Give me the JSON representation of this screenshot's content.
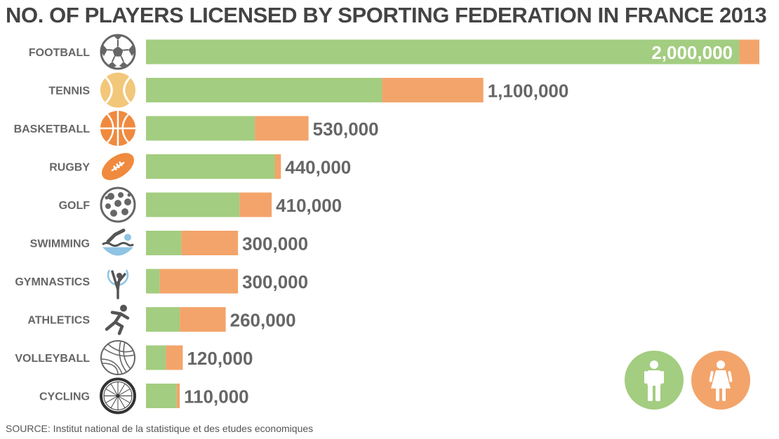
{
  "chart_data": {
    "type": "bar",
    "orientation": "horizontal",
    "stacked": true,
    "title": "NO. OF PLAYERS LICENSED BY SPORTING FEDERATION IN FRANCE 2013",
    "categories": [
      "FOOTBALL",
      "TENNIS",
      "BASKETBALL",
      "RUGBY",
      "GOLF",
      "SWIMMING",
      "GYMNASTICS",
      "ATHLETICS",
      "VOLLEYBALL",
      "CYCLING"
    ],
    "icons": [
      "football-icon",
      "tennis-ball-icon",
      "basketball-icon",
      "rugby-ball-icon",
      "golf-ball-icon",
      "swimmer-icon",
      "gymnast-icon",
      "runner-icon",
      "volleyball-icon",
      "bicycle-wheel-icon"
    ],
    "series": [
      {
        "legend_icon": "male-icon",
        "color": "#a3cd80",
        "values": [
          1935000,
          770000,
          355000,
          420000,
          305000,
          115000,
          45000,
          110000,
          65000,
          100000
        ]
      },
      {
        "legend_icon": "female-icon",
        "color": "#f3a46b",
        "values": [
          65000,
          330000,
          175000,
          20000,
          105000,
          185000,
          255000,
          150000,
          55000,
          10000
        ]
      }
    ],
    "totals": [
      2000000,
      1100000,
      530000,
      440000,
      410000,
      300000,
      300000,
      260000,
      120000,
      110000
    ],
    "value_labels": [
      "2,000,000",
      "1,100,000",
      "530,000",
      "440,000",
      "410,000",
      "300,000",
      "300,000",
      "260,000",
      "120,000",
      "110,000"
    ],
    "xlim": [
      0,
      2000000
    ],
    "grid": false,
    "legend_placement": "bottom-right"
  },
  "source": "SOURCE: Institut national de la statistique et des etudes economiques"
}
